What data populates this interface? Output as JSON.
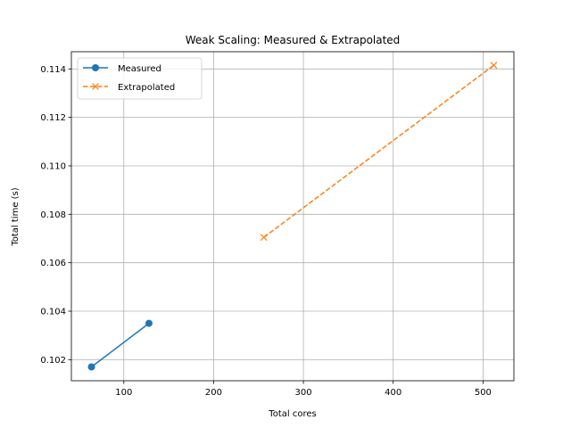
{
  "chart_data": {
    "type": "line",
    "title": "Weak Scaling: Measured & Extrapolated",
    "xlabel": "Total cores",
    "ylabel": "Total time (s)",
    "xlim": [
      41.6,
      534.4
    ],
    "ylim": [
      0.10113,
      0.11471
    ],
    "xticks": [
      100,
      200,
      300,
      400,
      500
    ],
    "yticks": [
      0.102,
      0.104,
      0.106,
      0.108,
      0.11,
      0.112,
      0.114
    ],
    "ytick_labels": [
      "0.102",
      "0.104",
      "0.106",
      "0.108",
      "0.110",
      "0.112",
      "0.114"
    ],
    "grid": true,
    "legend_position": "top-left",
    "series": [
      {
        "name": "Measured",
        "color": "#1f77b4",
        "line_style": "solid",
        "marker": "circle",
        "x": [
          64,
          128
        ],
        "y": [
          0.1017,
          0.1035
        ]
      },
      {
        "name": "Extrapolated",
        "color": "#ff7f0e",
        "line_style": "dashed",
        "marker": "x",
        "x": [
          256,
          512
        ],
        "y": [
          0.10705,
          0.11415
        ]
      }
    ]
  }
}
